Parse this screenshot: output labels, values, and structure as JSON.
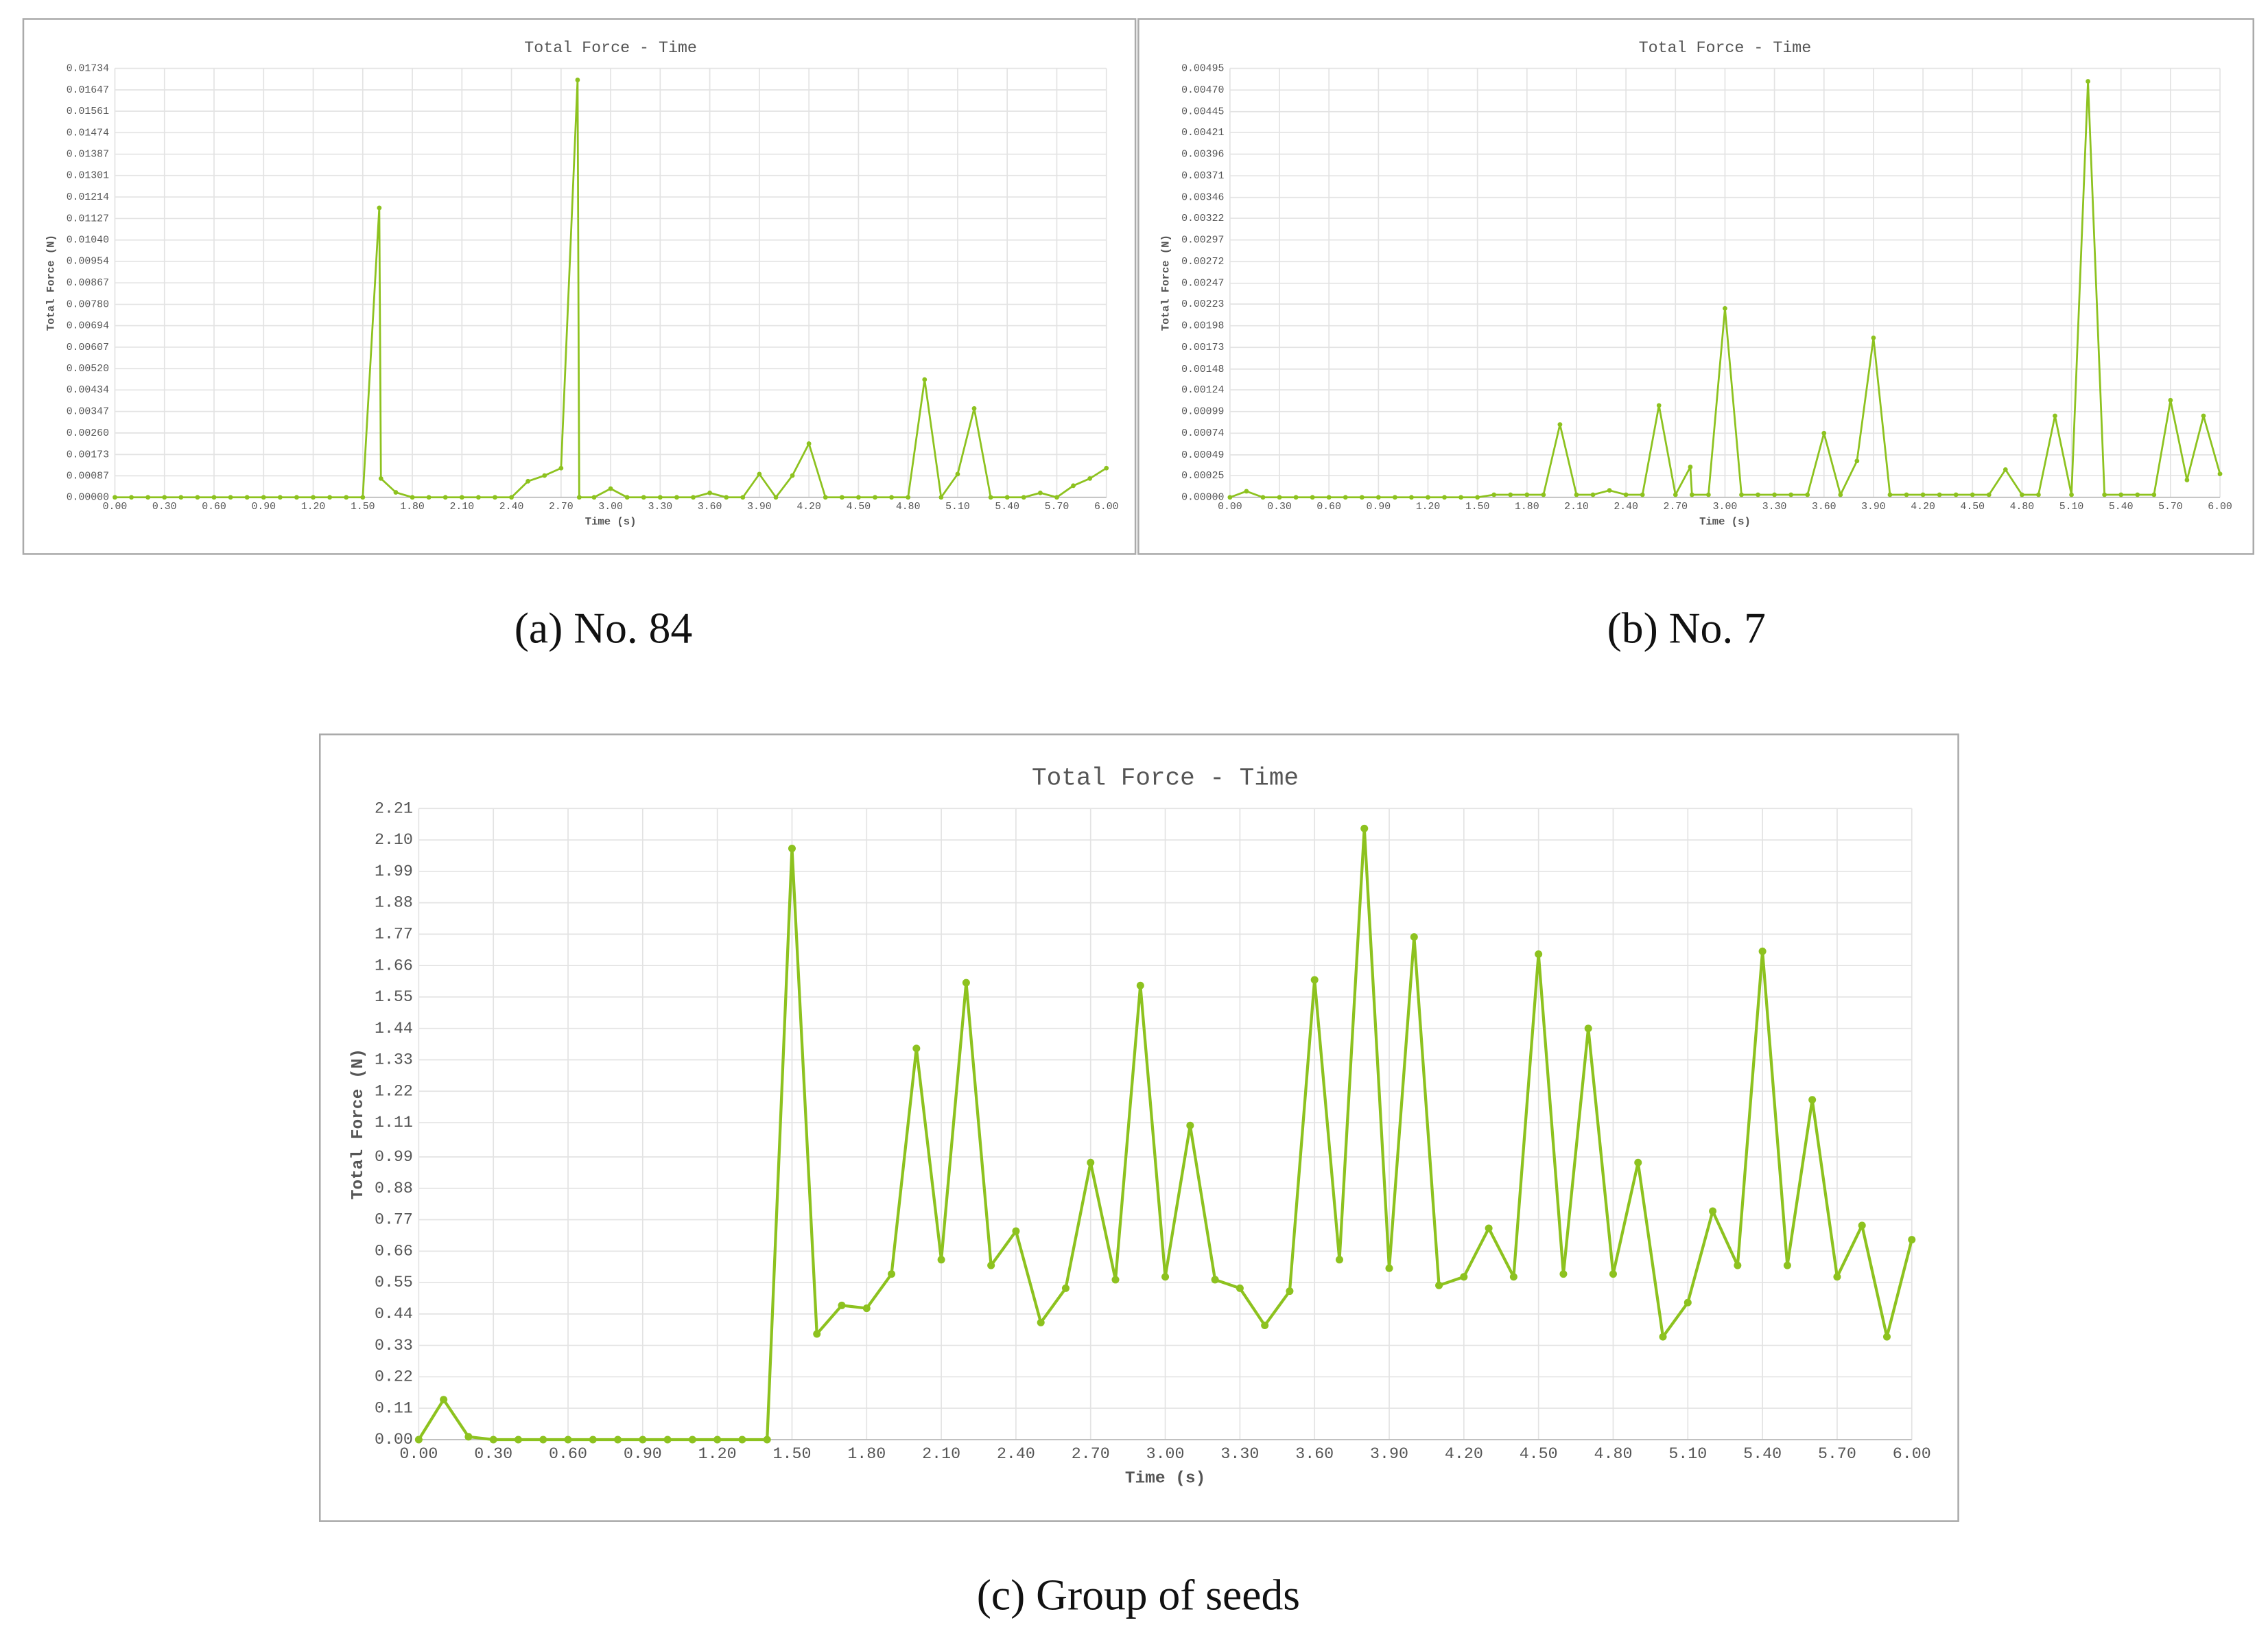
{
  "chart_data": [
    {
      "type": "line",
      "title": "Total Force - Time",
      "xlabel": "Time (s)",
      "ylabel": "Total Force (N)",
      "caption": "(a) No. 84",
      "color": "#8dc21f",
      "grid": true,
      "x": [
        0,
        0.1,
        0.2,
        0.3,
        0.4,
        0.5,
        0.6,
        0.7,
        0.8,
        0.9,
        1.0,
        1.1,
        1.2,
        1.3,
        1.4,
        1.5,
        1.6,
        1.61,
        1.7,
        1.8,
        1.9,
        2.0,
        2.1,
        2.2,
        2.3,
        2.4,
        2.5,
        2.6,
        2.7,
        2.8,
        2.81,
        2.9,
        3.0,
        3.1,
        3.2,
        3.3,
        3.4,
        3.5,
        3.6,
        3.7,
        3.8,
        3.9,
        4.0,
        4.1,
        4.2,
        4.3,
        4.4,
        4.5,
        4.6,
        4.7,
        4.8,
        4.9,
        5.0,
        5.1,
        5.2,
        5.3,
        5.4,
        5.5,
        5.6,
        5.7,
        5.8,
        5.9,
        6.0
      ],
      "values": [
        0,
        0,
        0,
        0,
        0,
        0,
        0,
        0,
        0,
        0,
        0,
        0,
        0,
        0,
        0,
        0,
        0.0117,
        0.00076,
        0.0002,
        0,
        0,
        0,
        0,
        0,
        0,
        0,
        0.00065,
        0.00088,
        0.00118,
        0.01687,
        0,
        0,
        0.00035,
        0,
        0,
        0,
        0,
        0,
        0.00018,
        0,
        0,
        0.00094,
        0,
        0.00088,
        0.00217,
        0,
        0,
        0,
        0,
        0,
        0,
        0.00476,
        0,
        0.00094,
        0.00359,
        0,
        0,
        0,
        0.00018,
        0,
        0.00047,
        0.00076,
        0.00118
      ],
      "xlim": [
        0,
        6
      ],
      "xticks": [
        {
          "value": 0,
          "label": "0.00"
        },
        {
          "value": 0.3,
          "label": "0.30"
        },
        {
          "value": 0.6,
          "label": "0.60"
        },
        {
          "value": 0.9,
          "label": "0.90"
        },
        {
          "value": 1.2,
          "label": "1.20"
        },
        {
          "value": 1.5,
          "label": "1.50"
        },
        {
          "value": 1.8,
          "label": "1.80"
        },
        {
          "value": 2.1,
          "label": "2.10"
        },
        {
          "value": 2.4,
          "label": "2.40"
        },
        {
          "value": 2.7,
          "label": "2.70"
        },
        {
          "value": 3,
          "label": "3.00"
        },
        {
          "value": 3.3,
          "label": "3.30"
        },
        {
          "value": 3.6,
          "label": "3.60"
        },
        {
          "value": 3.9,
          "label": "3.90"
        },
        {
          "value": 4.2,
          "label": "4.20"
        },
        {
          "value": 4.5,
          "label": "4.50"
        },
        {
          "value": 4.8,
          "label": "4.80"
        },
        {
          "value": 5.1,
          "label": "5.10"
        },
        {
          "value": 5.4,
          "label": "5.40"
        },
        {
          "value": 5.7,
          "label": "5.70"
        },
        {
          "value": 6,
          "label": "6.00"
        }
      ],
      "ylim": [
        0,
        0.01734
      ],
      "yticks": [
        {
          "value": 0,
          "label": "0.00000"
        },
        0.00087,
        0.00173,
        {
          "value": 0.0026,
          "label": "0.00260"
        },
        0.00347,
        0.00434,
        {
          "value": 0.0052,
          "label": "0.00520"
        },
        0.00607,
        0.00694,
        {
          "value": 0.0078,
          "label": "0.00780"
        },
        0.00867,
        0.00954,
        {
          "value": 0.0104,
          "label": "0.01040"
        },
        0.01127,
        0.01214,
        0.01301,
        0.01387,
        0.01474,
        0.01561,
        0.01647,
        0.01734
      ]
    },
    {
      "type": "line",
      "title": "Total Force - Time",
      "xlabel": "Time (s)",
      "ylabel": "Total Force (N)",
      "caption": "(b) No. 7",
      "color": "#8dc21f",
      "grid": true,
      "x": [
        0,
        0.1,
        0.2,
        0.3,
        0.4,
        0.5,
        0.6,
        0.7,
        0.8,
        0.9,
        1.0,
        1.1,
        1.2,
        1.3,
        1.4,
        1.5,
        1.6,
        1.7,
        1.8,
        1.9,
        2.0,
        2.1,
        2.2,
        2.3,
        2.4,
        2.5,
        2.6,
        2.7,
        2.79,
        2.8,
        2.9,
        3.0,
        3.1,
        3.2,
        3.3,
        3.4,
        3.5,
        3.6,
        3.7,
        3.8,
        3.9,
        4.0,
        4.1,
        4.2,
        4.3,
        4.4,
        4.5,
        4.6,
        4.7,
        4.8,
        4.9,
        5.0,
        5.1,
        5.2,
        5.3,
        5.4,
        5.5,
        5.6,
        5.7,
        5.8,
        5.9,
        6.0
      ],
      "values": [
        0,
        7e-05,
        0,
        0,
        0,
        0,
        0,
        0,
        0,
        0,
        0,
        0,
        0,
        0,
        0,
        0,
        3e-05,
        3e-05,
        3e-05,
        3e-05,
        0.00084,
        3e-05,
        3e-05,
        8e-05,
        3e-05,
        3e-05,
        0.00106,
        3e-05,
        0.00035,
        3e-05,
        3e-05,
        0.00218,
        3e-05,
        3e-05,
        3e-05,
        3e-05,
        3e-05,
        0.00074,
        3e-05,
        0.00042,
        0.00184,
        3e-05,
        3e-05,
        3e-05,
        3e-05,
        3e-05,
        3e-05,
        3e-05,
        0.00032,
        3e-05,
        3e-05,
        0.00094,
        3e-05,
        0.0048,
        3e-05,
        3e-05,
        3e-05,
        3e-05,
        0.00112,
        0.0002,
        0.00094,
        0.00027
      ],
      "xlim": [
        0,
        6
      ],
      "xticks": [
        {
          "value": 0,
          "label": "0.00"
        },
        {
          "value": 0.3,
          "label": "0.30"
        },
        {
          "value": 0.6,
          "label": "0.60"
        },
        {
          "value": 0.9,
          "label": "0.90"
        },
        {
          "value": 1.2,
          "label": "1.20"
        },
        {
          "value": 1.5,
          "label": "1.50"
        },
        {
          "value": 1.8,
          "label": "1.80"
        },
        {
          "value": 2.1,
          "label": "2.10"
        },
        {
          "value": 2.4,
          "label": "2.40"
        },
        {
          "value": 2.7,
          "label": "2.70"
        },
        {
          "value": 3,
          "label": "3.00"
        },
        {
          "value": 3.3,
          "label": "3.30"
        },
        {
          "value": 3.6,
          "label": "3.60"
        },
        {
          "value": 3.9,
          "label": "3.90"
        },
        {
          "value": 4.2,
          "label": "4.20"
        },
        {
          "value": 4.5,
          "label": "4.50"
        },
        {
          "value": 4.8,
          "label": "4.80"
        },
        {
          "value": 5.1,
          "label": "5.10"
        },
        {
          "value": 5.4,
          "label": "5.40"
        },
        {
          "value": 5.7,
          "label": "5.70"
        },
        {
          "value": 6,
          "label": "6.00"
        }
      ],
      "ylim": [
        0,
        0.00495
      ],
      "yticks": [
        {
          "value": 0,
          "label": "0.00000"
        },
        0.00025,
        0.00049,
        0.00074,
        0.00099,
        0.00124,
        0.00148,
        0.00173,
        0.00198,
        0.00223,
        0.00247,
        0.00272,
        0.00297,
        0.00322,
        0.00346,
        0.00371,
        0.00396,
        0.00421,
        0.00445,
        {
          "value": 0.0047,
          "label": "0.00470"
        },
        0.00495
      ]
    },
    {
      "type": "line",
      "title": "Total Force - Time",
      "xlabel": "Time (s)",
      "ylabel": "Total Force (N)",
      "caption": "(c) Group of seeds",
      "color": "#8dc21f",
      "grid": true,
      "x": [
        0,
        0.1,
        0.2,
        0.3,
        0.4,
        0.5,
        0.6,
        0.7,
        0.8,
        0.9,
        1.0,
        1.1,
        1.2,
        1.3,
        1.4,
        1.5,
        1.6,
        1.7,
        1.8,
        1.9,
        2.0,
        2.1,
        2.2,
        2.3,
        2.4,
        2.5,
        2.6,
        2.7,
        2.8,
        2.9,
        3.0,
        3.1,
        3.2,
        3.3,
        3.4,
        3.5,
        3.6,
        3.7,
        3.8,
        3.9,
        4.0,
        4.1,
        4.2,
        4.3,
        4.4,
        4.5,
        4.6,
        4.7,
        4.8,
        4.9,
        5.0,
        5.1,
        5.2,
        5.3,
        5.4,
        5.5,
        5.6,
        5.7,
        5.8,
        5.9,
        6.0
      ],
      "values": [
        0,
        0.14,
        0.01,
        0,
        0,
        0,
        0,
        0,
        0,
        0,
        0,
        0,
        0,
        0,
        0,
        2.07,
        0.37,
        0.47,
        0.46,
        0.58,
        1.37,
        0.63,
        1.6,
        0.61,
        0.73,
        0.41,
        0.53,
        0.97,
        0.56,
        1.59,
        0.57,
        1.1,
        0.56,
        0.53,
        0.4,
        0.52,
        1.61,
        0.63,
        2.14,
        0.6,
        1.76,
        0.54,
        0.57,
        0.74,
        0.57,
        1.7,
        0.58,
        1.44,
        0.58,
        0.97,
        0.36,
        0.48,
        0.8,
        0.61,
        1.71,
        0.61,
        1.19,
        0.57,
        0.75,
        0.36,
        0.7
      ],
      "xlim": [
        0,
        6
      ],
      "xticks": [
        {
          "value": 0,
          "label": "0.00"
        },
        {
          "value": 0.3,
          "label": "0.30"
        },
        {
          "value": 0.6,
          "label": "0.60"
        },
        {
          "value": 0.9,
          "label": "0.90"
        },
        {
          "value": 1.2,
          "label": "1.20"
        },
        {
          "value": 1.5,
          "label": "1.50"
        },
        {
          "value": 1.8,
          "label": "1.80"
        },
        {
          "value": 2.1,
          "label": "2.10"
        },
        {
          "value": 2.4,
          "label": "2.40"
        },
        {
          "value": 2.7,
          "label": "2.70"
        },
        {
          "value": 3,
          "label": "3.00"
        },
        {
          "value": 3.3,
          "label": "3.30"
        },
        {
          "value": 3.6,
          "label": "3.60"
        },
        {
          "value": 3.9,
          "label": "3.90"
        },
        {
          "value": 4.2,
          "label": "4.20"
        },
        {
          "value": 4.5,
          "label": "4.50"
        },
        {
          "value": 4.8,
          "label": "4.80"
        },
        {
          "value": 5.1,
          "label": "5.10"
        },
        {
          "value": 5.4,
          "label": "5.40"
        },
        {
          "value": 5.7,
          "label": "5.70"
        },
        {
          "value": 6,
          "label": "6.00"
        }
      ],
      "ylim": [
        0,
        2.21
      ],
      "yticks": [
        {
          "value": 0,
          "label": "0.00"
        },
        0.11,
        0.22,
        0.33,
        0.44,
        0.55,
        0.66,
        0.77,
        0.88,
        0.99,
        1.11,
        1.22,
        1.33,
        1.44,
        1.55,
        1.66,
        1.77,
        1.88,
        1.99,
        {
          "value": 2.1,
          "label": "2.10"
        },
        2.21
      ]
    }
  ]
}
